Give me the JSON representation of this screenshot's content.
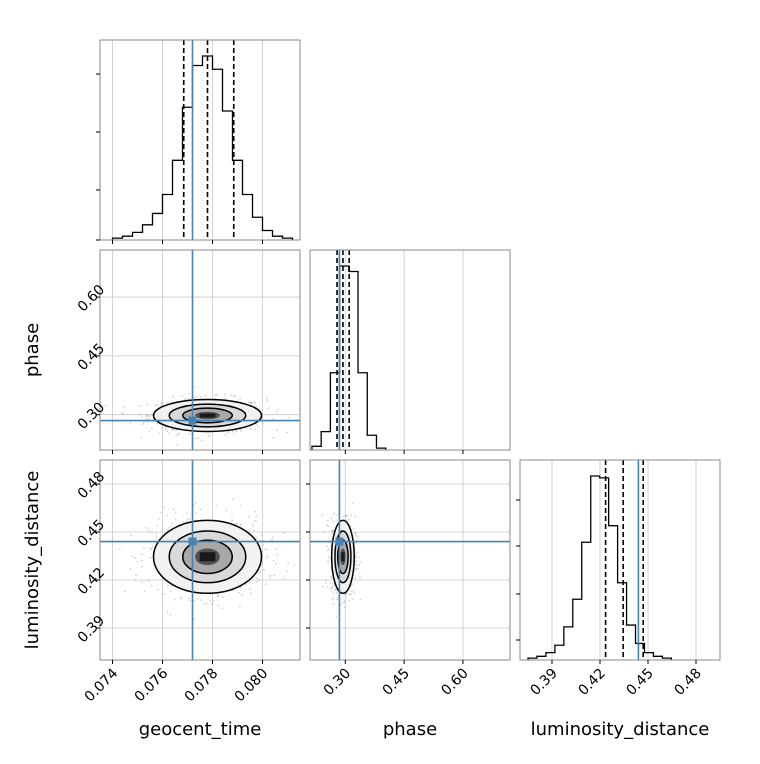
{
  "chart_data": {
    "type": "corner",
    "parameters": [
      "geocent_time",
      "phase",
      "luminosity_distance"
    ],
    "axis_labels": {
      "x": [
        "geocent_time",
        "phase",
        "luminosity_distance"
      ],
      "y": [
        "",
        "phase",
        "luminosity_distance"
      ]
    },
    "ranges": {
      "geocent_time": [
        0.0735,
        0.0815
      ],
      "phase": [
        0.21,
        0.72
      ],
      "luminosity_distance": [
        0.37,
        0.495
      ]
    },
    "ticks": {
      "geocent_time": [
        "0.074",
        "0.076",
        "0.078",
        "0.080"
      ],
      "phase": [
        "0.30",
        "0.45",
        "0.60"
      ],
      "luminosity_distance": [
        "0.39",
        "0.42",
        "0.45",
        "0.48"
      ]
    },
    "truths": {
      "geocent_time": 0.0772,
      "phase": 0.285,
      "luminosity_distance": 0.444
    },
    "quantiles": {
      "geocent_time": [
        0.07685,
        0.0778,
        0.07885
      ],
      "phase": [
        0.279,
        0.294,
        0.31
      ],
      "luminosity_distance": [
        0.4235,
        0.4345,
        0.447
      ]
    },
    "histograms": {
      "geocent_time": {
        "start": 0.074,
        "bin_width": 0.0004,
        "counts": [
          1,
          2,
          4,
          8,
          14,
          24,
          42,
          70,
          92,
          97,
          90,
          68,
          42,
          24,
          12,
          5,
          2,
          1
        ]
      },
      "phase": {
        "start": 0.215,
        "bin_width": 0.0235,
        "counts": [
          2,
          10,
          42,
          100,
          97,
          42,
          8,
          1
        ]
      },
      "luminosity_distance": {
        "start": 0.375,
        "bin_width": 0.0056,
        "counts": [
          1,
          2,
          4,
          8,
          18,
          33,
          64,
          100,
          99,
          73,
          42,
          19,
          9,
          4,
          2,
          1
        ]
      }
    },
    "scatter": [
      {
        "x": "geocent_time",
        "y": "phase",
        "center": [
          0.0778,
          0.298
        ],
        "spread": [
          0.0009,
          0.017
        ],
        "image_scale": 0.14
      },
      {
        "x": "geocent_time",
        "y": "luminosity_distance",
        "center": [
          0.0778,
          0.4345
        ],
        "spread": [
          0.0009,
          0.0095
        ],
        "image_scale": 0.14
      },
      {
        "x": "phase",
        "y": "luminosity_distance",
        "center": [
          0.294,
          0.4345
        ],
        "spread": [
          0.012,
          0.0095
        ],
        "image_scale": 0.12
      }
    ],
    "grid": true,
    "truth_color": "#4682b4",
    "histogram_color": "#000000",
    "scatter_color": "#9e9e9e"
  }
}
